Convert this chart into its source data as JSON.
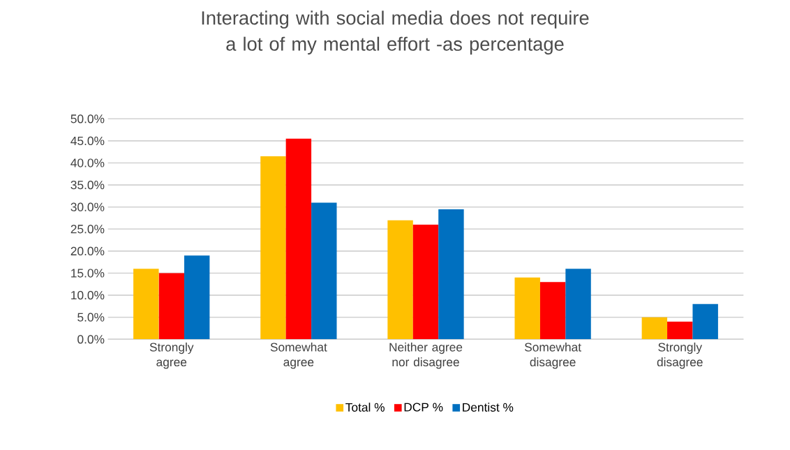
{
  "chart_data": {
    "type": "bar",
    "title": "Interacting with social media does not require a lot of my mental effort -as percentage",
    "categories": [
      "Strongly agree",
      "Somewhat agree",
      "Neither agree nor disagree",
      "Somewhat disagree",
      "Strongly disagree"
    ],
    "series": [
      {
        "name": "Total %",
        "color": "#ffc000",
        "values": [
          16.0,
          41.5,
          27.0,
          14.0,
          5.0
        ]
      },
      {
        "name": "DCP %",
        "color": "#ff0000",
        "values": [
          15.0,
          45.5,
          26.0,
          13.0,
          4.0
        ]
      },
      {
        "name": "Dentist %",
        "color": "#0070c0",
        "values": [
          19.0,
          31.0,
          29.5,
          16.0,
          8.0
        ]
      }
    ],
    "ylim": [
      0,
      50
    ],
    "yticks": [
      {
        "value": 0,
        "label": "0.0%"
      },
      {
        "value": 5,
        "label": "5.0%"
      },
      {
        "value": 10,
        "label": "10.0%"
      },
      {
        "value": 15,
        "label": "15.0%"
      },
      {
        "value": 20,
        "label": "20.0%"
      },
      {
        "value": 25,
        "label": "25.0%"
      },
      {
        "value": 30,
        "label": "30.0%"
      },
      {
        "value": 35,
        "label": "35.0%"
      },
      {
        "value": 40,
        "label": "40.0%"
      },
      {
        "value": 45,
        "label": "45.0%"
      },
      {
        "value": 50,
        "label": "50.0%"
      }
    ],
    "grid": "y",
    "legend": "bottom"
  }
}
